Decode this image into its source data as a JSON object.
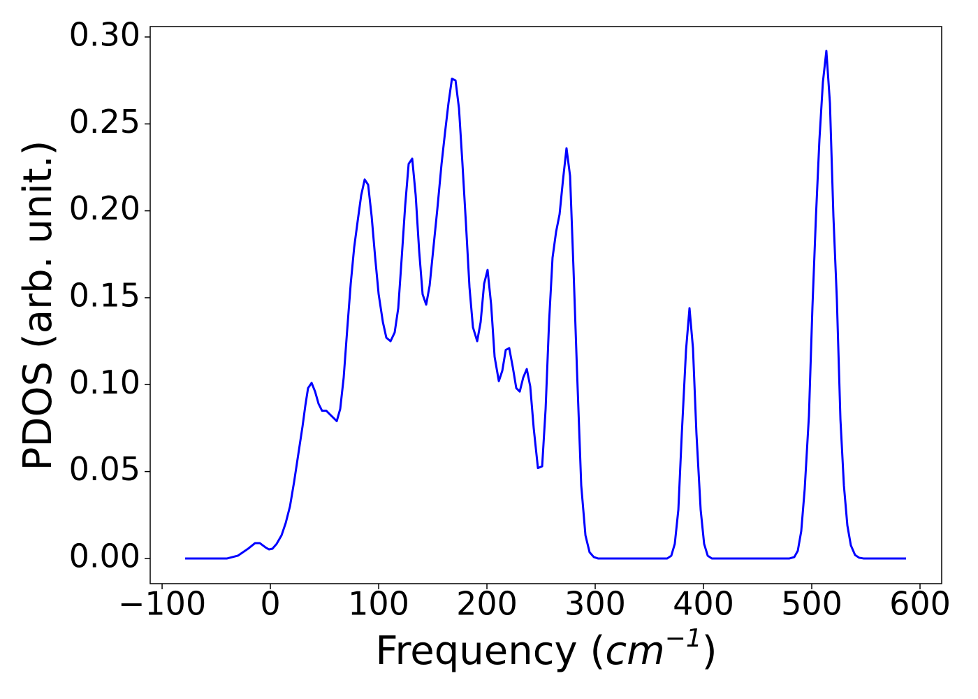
{
  "chart_data": {
    "type": "line",
    "xlabel": [
      "Frequency (",
      "cm",
      "−1",
      ")"
    ],
    "ylabel": "PDOS (arb. unit.)",
    "color": "#0000ff",
    "x": [
      -78.7,
      -40,
      -30,
      -20.6,
      -14.2,
      -9.7,
      -4.5,
      -1.3,
      1.9,
      5.8,
      10.3,
      14.2,
      18.1,
      21.9,
      25.8,
      29.7,
      32.3,
      34.8,
      38.1,
      41.3,
      44.5,
      47.7,
      51.6,
      54.8,
      58.1,
      61.3,
      64.5,
      67.7,
      71,
      74.2,
      77.4,
      80.6,
      83.9,
      87.1,
      90.3,
      93.5,
      96.8,
      100,
      103.9,
      107.1,
      111,
      114.8,
      118.1,
      121.3,
      124.5,
      127.7,
      131,
      134.2,
      137.4,
      140.6,
      143.9,
      147.1,
      150.3,
      154.2,
      158.1,
      161.3,
      164.5,
      167.7,
      171,
      174.2,
      177.4,
      180.6,
      183.9,
      187.1,
      191,
      194.2,
      197.4,
      200.6,
      203.9,
      207.1,
      211,
      214.2,
      217.4,
      220.6,
      223.9,
      227.1,
      230.3,
      233.5,
      236.8,
      240,
      243.2,
      247.1,
      251,
      254.2,
      257.4,
      260.6,
      263.9,
      267.1,
      270.3,
      273.5,
      276.8,
      280,
      283.2,
      287.1,
      291,
      294.8,
      298.7,
      302.6,
      366.5,
      370.3,
      373.5,
      376.8,
      380,
      383.9,
      387.1,
      390.3,
      393.5,
      397.4,
      400.6,
      403.9,
      407.7,
      479.4,
      483.9,
      487.1,
      490.3,
      493.5,
      497.4,
      500.6,
      503.9,
      507.1,
      510.3,
      513.5,
      516.8,
      520,
      523.2,
      526.5,
      529.7,
      532.9,
      536.1,
      540,
      543.9,
      547.7,
      587.1
    ],
    "values": [
      0,
      0,
      0.0016,
      0.0056,
      0.0088,
      0.0088,
      0.0064,
      0.0052,
      0.0056,
      0.0084,
      0.0133,
      0.0205,
      0.03,
      0.044,
      0.06,
      0.076,
      0.088,
      0.098,
      0.101,
      0.096,
      0.089,
      0.085,
      0.085,
      0.083,
      0.081,
      0.079,
      0.086,
      0.104,
      0.132,
      0.158,
      0.179,
      0.194,
      0.209,
      0.218,
      0.215,
      0.197,
      0.173,
      0.152,
      0.136,
      0.127,
      0.125,
      0.13,
      0.144,
      0.173,
      0.203,
      0.227,
      0.23,
      0.209,
      0.177,
      0.152,
      0.146,
      0.157,
      0.177,
      0.201,
      0.227,
      0.245,
      0.262,
      0.276,
      0.275,
      0.259,
      0.227,
      0.193,
      0.156,
      0.133,
      0.125,
      0.136,
      0.158,
      0.166,
      0.146,
      0.116,
      0.102,
      0.108,
      0.12,
      0.121,
      0.11,
      0.098,
      0.096,
      0.104,
      0.109,
      0.099,
      0.075,
      0.052,
      0.053,
      0.086,
      0.136,
      0.173,
      0.188,
      0.198,
      0.218,
      0.236,
      0.22,
      0.166,
      0.108,
      0.042,
      0.0133,
      0.0036,
      0.0008,
      0,
      0,
      0.0016,
      0.0084,
      0.028,
      0.072,
      0.12,
      0.144,
      0.121,
      0.072,
      0.028,
      0.0084,
      0.0016,
      0,
      0,
      0.0008,
      0.0044,
      0.0157,
      0.04,
      0.082,
      0.144,
      0.197,
      0.241,
      0.274,
      0.292,
      0.262,
      0.197,
      0.149,
      0.08,
      0.042,
      0.019,
      0.0076,
      0.002,
      0.0004,
      0,
      0
    ],
    "xlim": [
      -111,
      620
    ],
    "ylim": [
      -0.0145,
      0.306
    ],
    "xticks": [
      {
        "value": -100,
        "label": "−100"
      },
      0,
      100,
      200,
      300,
      400,
      500,
      600
    ],
    "yticks": [
      {
        "value": 0,
        "label": "0.00"
      },
      {
        "value": 0.05,
        "label": "0.05"
      },
      {
        "value": 0.1,
        "label": "0.10"
      },
      {
        "value": 0.15,
        "label": "0.15"
      },
      {
        "value": 0.2,
        "label": "0.20"
      },
      {
        "value": 0.25,
        "label": "0.25"
      },
      {
        "value": 0.3,
        "label": "0.30"
      }
    ]
  }
}
